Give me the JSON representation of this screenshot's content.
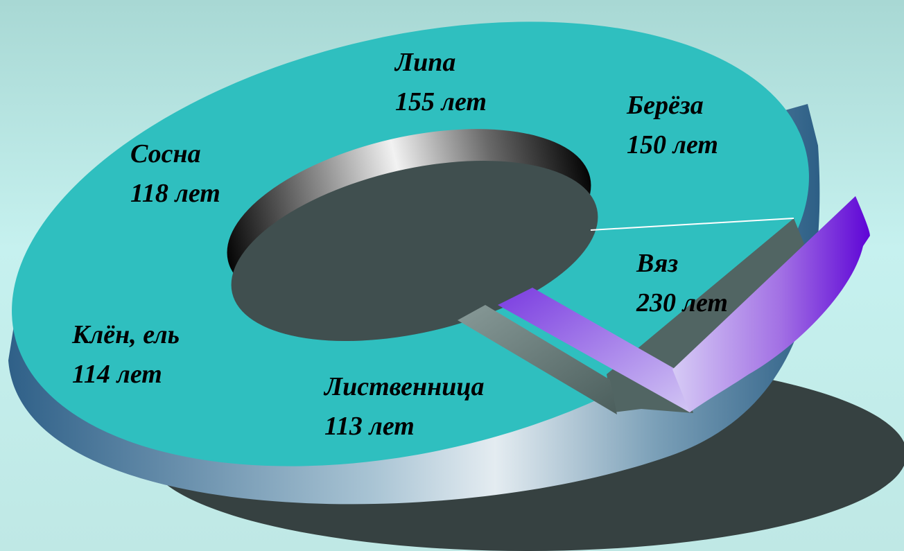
{
  "chart_data": {
    "type": "doughnut-3d",
    "categories": [
      "Липа",
      "Берёза",
      "Вяз",
      "Лиственница",
      "Клён, ель",
      "Сосна"
    ],
    "values": [
      155,
      150,
      230,
      113,
      114,
      118
    ],
    "labels": [
      {
        "name": "Липа",
        "value_text": "155 лет"
      },
      {
        "name": "Берёза",
        "value_text": "150 лет"
      },
      {
        "name": "Вяз",
        "value_text": "230 лет"
      },
      {
        "name": "Лиственница",
        "value_text": "113 лет"
      },
      {
        "name": "Клён, ель",
        "value_text": "114 лет"
      },
      {
        "name": "Сосна",
        "value_text": "118 лет"
      }
    ],
    "exploded_category": "Вяз",
    "colors": {
      "ring_top": "#2fbfbf",
      "ring_side_dark": "#3a6e93",
      "ring_side_light": "#dfe8ee",
      "hole_floor": "#404f4f",
      "shadow": "#364141",
      "exploded_slice": "#7a3be0",
      "exploded_slice_light": "#d2c6f4"
    }
  }
}
